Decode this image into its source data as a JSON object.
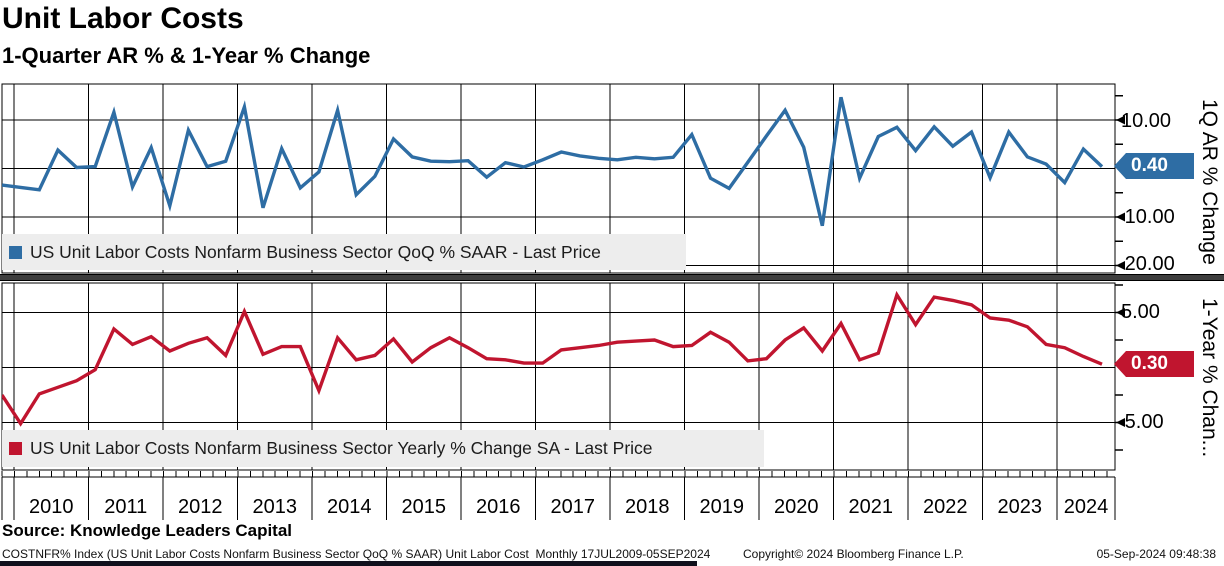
{
  "header": {
    "title": "Unit Labor Costs",
    "subtitle": "1-Quarter AR % & 1-Year % Change"
  },
  "panels": [
    {
      "legend": "US Unit Labor Costs Nonfarm Business Sector QoQ % SAAR - Last Price",
      "axis_title": "1Q AR % Change",
      "last_price_label": "0.40",
      "line_color": "#2e6da4",
      "ytick_labels": [
        "10.00",
        "-10.00",
        "-20.00"
      ]
    },
    {
      "legend": "US Unit Labor Costs Nonfarm Business Sector Yearly % Change SA - Last Price",
      "axis_title": "1-Year % Chan...",
      "last_price_label": "0.30",
      "line_color": "#c0152f",
      "ytick_labels": [
        "5.00",
        "-5.00"
      ]
    }
  ],
  "x_axis": {
    "years": [
      "2010",
      "2011",
      "2012",
      "2013",
      "2014",
      "2015",
      "2016",
      "2017",
      "2018",
      "2019",
      "2020",
      "2021",
      "2022",
      "2023",
      "2024"
    ]
  },
  "chart_data": [
    {
      "type": "line",
      "title": "US Unit Labor Costs Nonfarm Business Sector QoQ % SAAR - Last Price",
      "ylabel": "1Q AR % Change",
      "frequency": "quarterly",
      "x_start": "2009-Q3",
      "x_end": "2024-Q2",
      "ylim": [
        -22,
        17.5
      ],
      "yticks": [
        10,
        0,
        -10,
        -20
      ],
      "grid": true,
      "legend_position": "inside-bottom-left",
      "last_price": 0.4,
      "values": [
        -3.4,
        -3.9,
        -4.4,
        3.8,
        0.2,
        0.4,
        11.6,
        -3.8,
        4.3,
        -7.7,
        7.9,
        0.4,
        1.5,
        12.7,
        -8.1,
        4.1,
        -4.0,
        -0.7,
        12.0,
        -5.4,
        -1.6,
        6.1,
        2.4,
        1.5,
        1.4,
        1.6,
        -1.8,
        1.2,
        0.3,
        1.8,
        3.4,
        2.6,
        2.1,
        1.8,
        2.3,
        2.0,
        2.3,
        7.0,
        -2.0,
        -4.1,
        1.3,
        6.7,
        12.0,
        4.4,
        -11.8,
        14.7,
        -2.0,
        6.6,
        8.5,
        3.7,
        8.6,
        4.6,
        7.5,
        -1.9,
        7.5,
        2.4,
        0.9,
        -2.9,
        4.0,
        0.4
      ]
    },
    {
      "type": "line",
      "title": "US Unit Labor Costs Nonfarm Business Sector Yearly % Change SA - Last Price",
      "ylabel": "1-Year % Change",
      "frequency": "quarterly",
      "x_start": "2009-Q3",
      "x_end": "2024-Q2",
      "ylim": [
        -9.3,
        7.7
      ],
      "yticks": [
        5,
        0,
        -5
      ],
      "grid": true,
      "legend_position": "inside-bottom-left",
      "last_price": 0.3,
      "values": [
        -2.5,
        -5.1,
        -2.4,
        -1.8,
        -1.2,
        -0.2,
        3.5,
        2.1,
        2.8,
        1.5,
        2.2,
        2.7,
        1.1,
        5.1,
        1.2,
        1.9,
        1.9,
        -2.1,
        2.7,
        0.7,
        1.1,
        2.6,
        0.5,
        1.8,
        2.7,
        1.8,
        0.8,
        0.7,
        0.4,
        0.4,
        1.6,
        1.8,
        2.0,
        2.3,
        2.4,
        2.5,
        1.9,
        2.0,
        3.2,
        2.3,
        0.6,
        0.8,
        2.5,
        3.6,
        1.5,
        4.0,
        0.7,
        1.3,
        6.6,
        3.9,
        6.4,
        6.1,
        5.7,
        4.5,
        4.3,
        3.7,
        2.1,
        1.8,
        1.0,
        0.3
      ]
    }
  ],
  "source": "Source: Knowledge Leaders Capital",
  "footer": {
    "left": "COSTNFR% Index (US Unit Labor Costs Nonfarm Business Sector QoQ % SAAR) Unit Labor Cost  Monthly 17JUL2009-05SEP2024",
    "center": "Copyright© 2024 Bloomberg Finance L.P.",
    "right": "05-Sep-2024 09:48:38"
  },
  "colors": {
    "blue_series": "#2e6da4",
    "red_series": "#c0152f",
    "legend_background": "#ededed",
    "separator": "#3e3e3e",
    "grid": "#000000"
  }
}
